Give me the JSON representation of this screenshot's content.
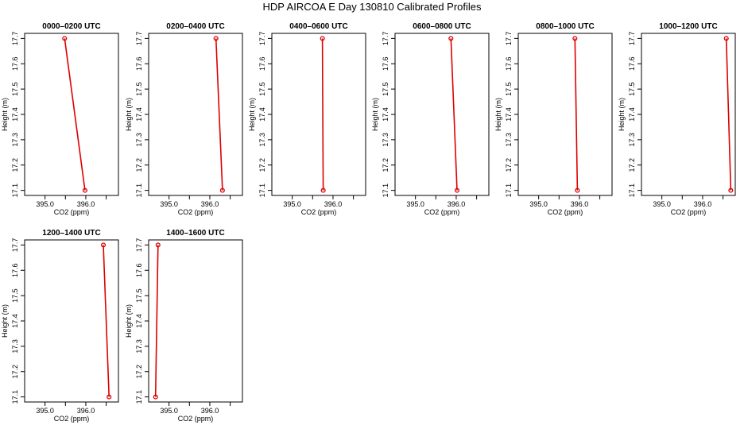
{
  "figure_title": "HDP AIRCOA E  Day 130810  Calibrated Profiles",
  "colors": {
    "line": "#dd0000",
    "point": "#dd0000",
    "frame": "#000000"
  },
  "chart_data": [
    {
      "type": "line",
      "title": "0000–0200 UTC",
      "xlabel": "CO2 (ppm)",
      "ylabel": "Height (m)",
      "xlim": [
        394.5,
        396.8
      ],
      "ylim": [
        17.08,
        17.72
      ],
      "xticks": [
        395.0,
        395.5,
        396.0,
        396.5
      ],
      "xticklabels": [
        "395.0",
        "",
        "396.0",
        ""
      ],
      "yticks": [
        17.1,
        17.2,
        17.3,
        17.4,
        17.5,
        17.6,
        17.7
      ],
      "yticklabels": [
        "17.1",
        "17.2",
        "17.3",
        "17.4",
        "17.5",
        "17.6",
        "17.7"
      ],
      "x": [
        395.48,
        395.98
      ],
      "y": [
        17.7,
        17.1
      ],
      "grid": false
    },
    {
      "type": "line",
      "title": "0200–0400 UTC",
      "xlabel": "CO2 (ppm)",
      "ylabel": "Height (m)",
      "xlim": [
        394.5,
        396.8
      ],
      "ylim": [
        17.08,
        17.72
      ],
      "xticks": [
        395.0,
        395.5,
        396.0,
        396.5
      ],
      "xticklabels": [
        "395.0",
        "",
        "396.0",
        ""
      ],
      "yticks": [
        17.1,
        17.2,
        17.3,
        17.4,
        17.5,
        17.6,
        17.7
      ],
      "yticklabels": [
        "17.1",
        "17.2",
        "17.3",
        "17.4",
        "17.5",
        "17.6",
        "17.7"
      ],
      "x": [
        396.15,
        396.31
      ],
      "y": [
        17.7,
        17.1
      ],
      "grid": false
    },
    {
      "type": "line",
      "title": "0400–0600 UTC",
      "xlabel": "CO2 (ppm)",
      "ylabel": "Height (m)",
      "xlim": [
        394.5,
        396.8
      ],
      "ylim": [
        17.08,
        17.72
      ],
      "xticks": [
        395.0,
        395.5,
        396.0,
        396.5
      ],
      "xticklabels": [
        "395.0",
        "",
        "396.0",
        ""
      ],
      "yticks": [
        17.1,
        17.2,
        17.3,
        17.4,
        17.5,
        17.6,
        17.7
      ],
      "yticklabels": [
        "17.1",
        "17.2",
        "17.3",
        "17.4",
        "17.5",
        "17.6",
        "17.7"
      ],
      "x": [
        395.74,
        395.76
      ],
      "y": [
        17.7,
        17.1
      ],
      "grid": false
    },
    {
      "type": "line",
      "title": "0600–0800 UTC",
      "xlabel": "CO2 (ppm)",
      "ylabel": "Height (m)",
      "xlim": [
        394.5,
        396.8
      ],
      "ylim": [
        17.08,
        17.72
      ],
      "xticks": [
        395.0,
        395.5,
        396.0,
        396.5
      ],
      "xticklabels": [
        "395.0",
        "",
        "396.0",
        ""
      ],
      "yticks": [
        17.1,
        17.2,
        17.3,
        17.4,
        17.5,
        17.6,
        17.7
      ],
      "yticklabels": [
        "17.1",
        "17.2",
        "17.3",
        "17.4",
        "17.5",
        "17.6",
        "17.7"
      ],
      "x": [
        395.87,
        396.02
      ],
      "y": [
        17.7,
        17.1
      ],
      "grid": false
    },
    {
      "type": "line",
      "title": "0800–1000 UTC",
      "xlabel": "CO2 (ppm)",
      "ylabel": "Height (m)",
      "xlim": [
        394.5,
        396.8
      ],
      "ylim": [
        17.08,
        17.72
      ],
      "xticks": [
        395.0,
        395.5,
        396.0,
        396.5
      ],
      "xticklabels": [
        "395.0",
        "",
        "396.0",
        ""
      ],
      "yticks": [
        17.1,
        17.2,
        17.3,
        17.4,
        17.5,
        17.6,
        17.7
      ],
      "yticklabels": [
        "17.1",
        "17.2",
        "17.3",
        "17.4",
        "17.5",
        "17.6",
        "17.7"
      ],
      "x": [
        395.89,
        395.95
      ],
      "y": [
        17.7,
        17.1
      ],
      "grid": false
    },
    {
      "type": "line",
      "title": "1000–1200 UTC",
      "xlabel": "CO2 (ppm)",
      "ylabel": "Height (m)",
      "xlim": [
        394.5,
        396.8
      ],
      "ylim": [
        17.08,
        17.72
      ],
      "xticks": [
        395.0,
        395.5,
        396.0,
        396.5
      ],
      "xticklabels": [
        "395.0",
        "",
        "396.0",
        ""
      ],
      "yticks": [
        17.1,
        17.2,
        17.3,
        17.4,
        17.5,
        17.6,
        17.7
      ],
      "yticklabels": [
        "17.1",
        "17.2",
        "17.3",
        "17.4",
        "17.5",
        "17.6",
        "17.7"
      ],
      "x": [
        396.58,
        396.69
      ],
      "y": [
        17.7,
        17.1
      ],
      "grid": false
    },
    {
      "type": "line",
      "title": "1200–1400 UTC",
      "xlabel": "CO2 (ppm)",
      "ylabel": "Height (m)",
      "xlim": [
        394.5,
        396.8
      ],
      "ylim": [
        17.08,
        17.72
      ],
      "xticks": [
        395.0,
        395.5,
        396.0,
        396.5
      ],
      "xticklabels": [
        "395.0",
        "",
        "396.0",
        ""
      ],
      "yticks": [
        17.1,
        17.2,
        17.3,
        17.4,
        17.5,
        17.6,
        17.7
      ],
      "yticklabels": [
        "17.1",
        "17.2",
        "17.3",
        "17.4",
        "17.5",
        "17.6",
        "17.7"
      ],
      "x": [
        396.43,
        396.57
      ],
      "y": [
        17.7,
        17.1
      ],
      "grid": false
    },
    {
      "type": "line",
      "title": "1400–1600 UTC",
      "xlabel": "CO2 (ppm)",
      "ylabel": "Height (m)",
      "xlim": [
        394.5,
        396.8
      ],
      "ylim": [
        17.08,
        17.72
      ],
      "xticks": [
        395.0,
        395.5,
        396.0,
        396.5
      ],
      "xticklabels": [
        "395.0",
        "",
        "396.0",
        ""
      ],
      "yticks": [
        17.1,
        17.2,
        17.3,
        17.4,
        17.5,
        17.6,
        17.7
      ],
      "yticklabels": [
        "17.1",
        "17.2",
        "17.3",
        "17.4",
        "17.5",
        "17.6",
        "17.7"
      ],
      "x": [
        394.73,
        394.67
      ],
      "y": [
        17.7,
        17.1
      ],
      "grid": false
    }
  ]
}
